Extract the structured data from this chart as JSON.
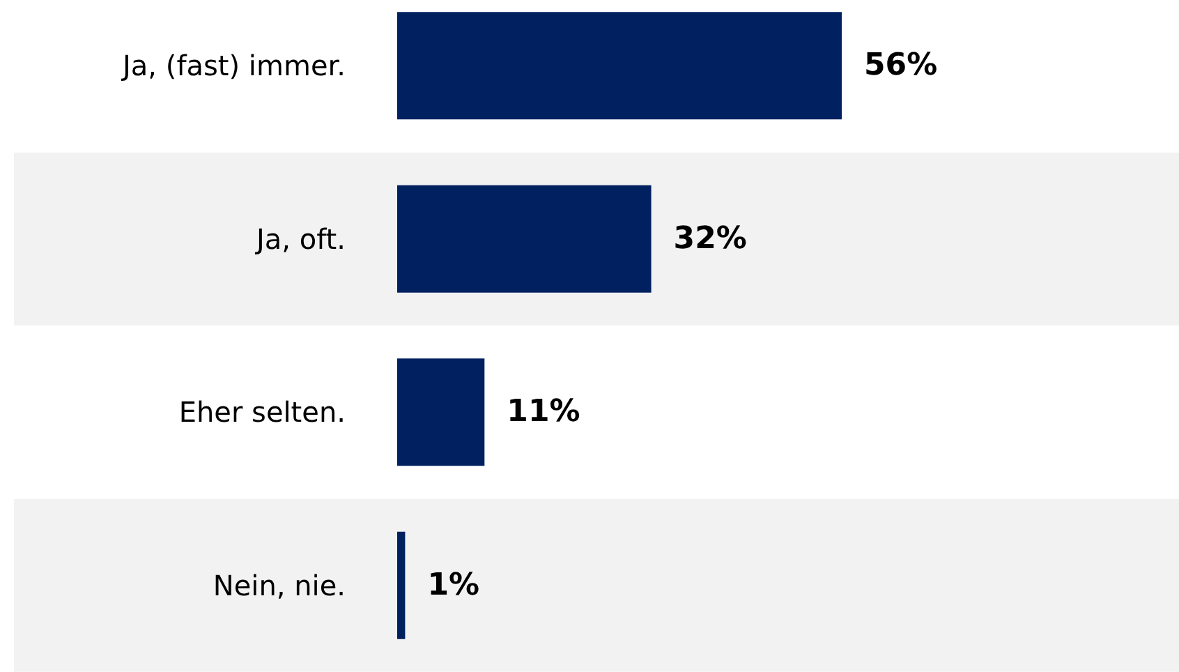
{
  "chart_data": {
    "type": "bar",
    "orientation": "horizontal",
    "categories": [
      "Ja, (fast) immer.",
      "Ja, oft.",
      "Eher selten.",
      "Nein, nie."
    ],
    "values": [
      56,
      32,
      11,
      1
    ],
    "color": "#002060",
    "data_labels": true,
    "value_labels": [
      "56%",
      "32%",
      "11%",
      "1%"
    ]
  }
}
